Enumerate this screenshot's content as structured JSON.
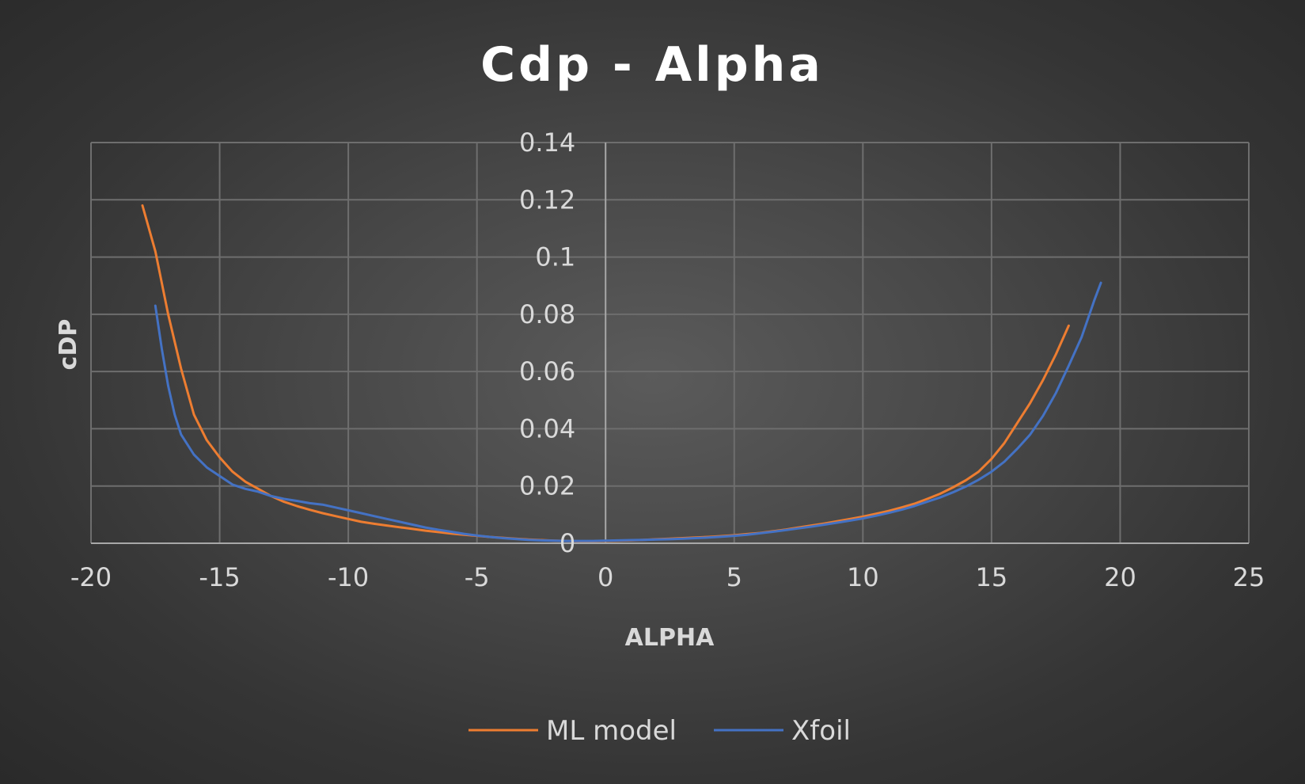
{
  "chart_data": {
    "type": "line",
    "title": "Cdp - Alpha",
    "xlabel": "ALPHA",
    "ylabel": "cDP",
    "xlim": [
      -20,
      25
    ],
    "ylim": [
      0,
      0.14
    ],
    "x_ticks": [
      -20,
      -15,
      -10,
      -5,
      0,
      5,
      10,
      15,
      20,
      25
    ],
    "x_tick_labels": [
      "-20",
      "-15",
      "-10",
      "-5",
      "0",
      "5",
      "10",
      "15",
      "20",
      "25"
    ],
    "y_ticks": [
      0,
      0.02,
      0.04,
      0.06,
      0.08,
      0.1,
      0.12,
      0.14
    ],
    "y_tick_labels": [
      "0",
      "0.02",
      "0.04",
      "0.06",
      "0.08",
      "0.1",
      "0.12",
      "0.14"
    ],
    "grid": true,
    "legend_position": "bottom",
    "series": [
      {
        "name": "ML model",
        "color": "#ed7d31",
        "x": [
          -18.0,
          -17.5,
          -17.0,
          -16.5,
          -16.0,
          -15.5,
          -15.0,
          -14.5,
          -14.0,
          -13.5,
          -13.0,
          -12.5,
          -12.0,
          -11.5,
          -11.0,
          -10.5,
          -10.0,
          -9.5,
          -9.0,
          -8.5,
          -8.0,
          -7.5,
          -7.0,
          -6.5,
          -6.0,
          -5.5,
          -5.0,
          -4.5,
          -4.0,
          -3.5,
          -3.0,
          -2.5,
          -2.0,
          -1.5,
          -1.0,
          -0.5,
          0.0,
          0.5,
          1.0,
          1.5,
          2.0,
          2.5,
          3.0,
          3.5,
          4.0,
          4.5,
          5.0,
          5.5,
          6.0,
          6.5,
          7.0,
          7.5,
          8.0,
          8.5,
          9.0,
          9.5,
          10.0,
          10.5,
          11.0,
          11.5,
          12.0,
          12.5,
          13.0,
          13.5,
          14.0,
          14.5,
          15.0,
          15.5,
          16.0,
          16.5,
          17.0,
          17.5,
          18.0
        ],
        "y": [
          0.118,
          0.102,
          0.08,
          0.061,
          0.045,
          0.036,
          0.03,
          0.025,
          0.0215,
          0.019,
          0.0165,
          0.0145,
          0.013,
          0.0117,
          0.0105,
          0.0095,
          0.0085,
          0.0075,
          0.0068,
          0.0062,
          0.0056,
          0.005,
          0.0044,
          0.0039,
          0.0034,
          0.003,
          0.0026,
          0.0022,
          0.0019,
          0.0016,
          0.0013,
          0.0011,
          0.0009,
          0.0008,
          0.0007,
          0.0007,
          0.0008,
          0.0009,
          0.001,
          0.0012,
          0.0014,
          0.0016,
          0.0018,
          0.002,
          0.0022,
          0.0025,
          0.0028,
          0.0032,
          0.0036,
          0.0042,
          0.0048,
          0.0055,
          0.0062,
          0.0069,
          0.0077,
          0.0085,
          0.0093,
          0.0103,
          0.0113,
          0.0125,
          0.0138,
          0.0155,
          0.0173,
          0.0195,
          0.022,
          0.025,
          0.0295,
          0.035,
          0.042,
          0.049,
          0.057,
          0.066,
          0.076
        ]
      },
      {
        "name": "Xfoil",
        "color": "#4472c4",
        "x": [
          -17.5,
          -17.25,
          -17.0,
          -16.75,
          -16.5,
          -16.0,
          -15.5,
          -15.0,
          -14.5,
          -14.0,
          -13.5,
          -13.0,
          -12.5,
          -12.0,
          -11.5,
          -11.0,
          -10.5,
          -10.0,
          -9.5,
          -9.0,
          -8.5,
          -8.0,
          -7.5,
          -7.0,
          -6.5,
          -6.0,
          -5.5,
          -5.0,
          -4.5,
          -4.0,
          -3.5,
          -3.0,
          -2.5,
          -2.0,
          -1.5,
          -1.0,
          -0.5,
          0.0,
          0.5,
          1.0,
          1.5,
          2.0,
          2.5,
          3.0,
          3.5,
          4.0,
          4.5,
          5.0,
          5.5,
          6.0,
          6.5,
          7.0,
          7.5,
          8.0,
          8.5,
          9.0,
          9.5,
          10.0,
          10.5,
          11.0,
          11.5,
          12.0,
          12.5,
          13.0,
          13.5,
          14.0,
          14.5,
          15.0,
          15.5,
          16.0,
          16.5,
          17.0,
          17.5,
          18.0,
          18.5,
          19.0,
          19.25
        ],
        "y": [
          0.083,
          0.068,
          0.055,
          0.045,
          0.038,
          0.031,
          0.0265,
          0.0235,
          0.0205,
          0.019,
          0.018,
          0.0165,
          0.0155,
          0.0148,
          0.014,
          0.0135,
          0.0125,
          0.0115,
          0.0105,
          0.0095,
          0.0085,
          0.0075,
          0.0065,
          0.0055,
          0.0047,
          0.004,
          0.0033,
          0.0027,
          0.0022,
          0.0018,
          0.0015,
          0.0012,
          0.001,
          0.0009,
          0.0008,
          0.0008,
          0.0008,
          0.0009,
          0.001,
          0.0011,
          0.0012,
          0.0013,
          0.0014,
          0.0016,
          0.0018,
          0.002,
          0.0023,
          0.0026,
          0.003,
          0.0035,
          0.004,
          0.0046,
          0.0052,
          0.0058,
          0.0065,
          0.0072,
          0.0079,
          0.0087,
          0.0096,
          0.0106,
          0.0117,
          0.013,
          0.0145,
          0.016,
          0.0178,
          0.0198,
          0.0222,
          0.025,
          0.0285,
          0.033,
          0.038,
          0.0445,
          0.0525,
          0.062,
          0.072,
          0.085,
          0.091
        ]
      }
    ]
  }
}
